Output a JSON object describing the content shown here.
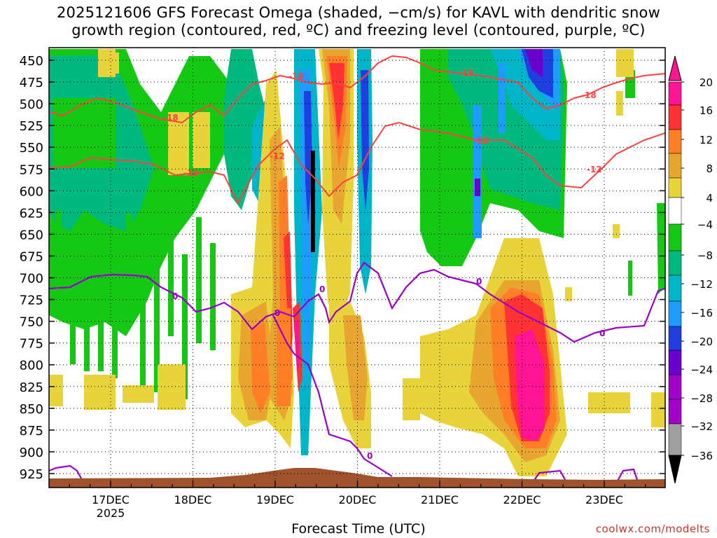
{
  "title": {
    "line1": "2025121606 GFS Forecast Omega (shaded, −cm/s) for KAVL with dendritic snow",
    "line2": "growth region (contoured, red, ºC) and freezing level (contoured, purple, ºC)"
  },
  "xlabel": "Forecast Time (UTC)",
  "credit": "coolwx.com/modelts",
  "chart_data": {
    "type": "heatmap",
    "x_ticks": [
      "17DEC",
      "18DEC",
      "19DEC",
      "20DEC",
      "21DEC",
      "22DEC",
      "23DEC"
    ],
    "x_year": "2025",
    "x_range": [
      "2025-12-16T06",
      "2025-12-23T18"
    ],
    "y_ticks": [
      450,
      475,
      500,
      525,
      550,
      575,
      600,
      625,
      650,
      675,
      700,
      725,
      750,
      775,
      800,
      825,
      850,
      875,
      900,
      925
    ],
    "y_range": [
      440,
      945
    ],
    "y_unit": "hPa",
    "grid": true,
    "colorbar": {
      "labels": [
        "20",
        "16",
        "12",
        "8",
        "4",
        "−4",
        "−8",
        "−12",
        "−16",
        "−20",
        "−24",
        "−28",
        "−32",
        "−36"
      ],
      "colors": [
        "#ff1493",
        "#ff3333",
        "#ff7f27",
        "#e8a630",
        "#e8d43a",
        "#ffffff",
        "#14c814",
        "#00b97f",
        "#00b5c8",
        "#1e9bff",
        "#1f3fe0",
        "#6a00cc",
        "#a000c8",
        "#a0a0a0"
      ],
      "top_arrow": "#ff1493",
      "bottom_arrow": "#000000"
    },
    "contours": {
      "dendritic_labels": [
        "-18",
        "-12"
      ],
      "freezing_label": "0",
      "dendritic_color": "#ff4040",
      "freezing_color": "#9900cc"
    },
    "terrain_color": "#a0522d"
  }
}
